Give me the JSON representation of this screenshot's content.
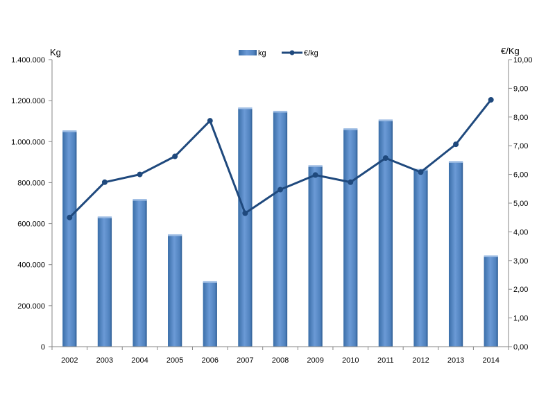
{
  "chart_data": {
    "type": "bar+line",
    "categories": [
      "2002",
      "2003",
      "2004",
      "2005",
      "2006",
      "2007",
      "2008",
      "2009",
      "2010",
      "2011",
      "2012",
      "2013",
      "2014"
    ],
    "series": [
      {
        "name": "kg",
        "type": "bar",
        "axis": "left",
        "color": "#4F81BD",
        "values": [
          1050000,
          630000,
          715000,
          543000,
          315000,
          1162000,
          1145000,
          880000,
          1060000,
          1103000,
          862000,
          900000,
          440000
        ]
      },
      {
        "name": "€/kg",
        "type": "line",
        "axis": "right",
        "color": "#1F497D",
        "values": [
          4.5,
          5.73,
          6.0,
          6.63,
          7.87,
          4.65,
          5.47,
          5.98,
          5.73,
          6.57,
          6.08,
          7.05,
          8.6
        ]
      }
    ],
    "left_axis": {
      "unit_label": "Kg",
      "range": [
        0,
        1400000
      ],
      "tick_labels": [
        "0",
        "200.000",
        "400.000",
        "600.000",
        "800.000",
        "1.000.000",
        "1.200.000",
        "1.400.000"
      ]
    },
    "right_axis": {
      "unit_label": "€/Kg",
      "range": [
        0,
        10
      ],
      "tick_labels": [
        "0,00",
        "1,00",
        "2,00",
        "3,00",
        "4,00",
        "5,00",
        "6,00",
        "7,00",
        "8,00",
        "9,00",
        "10,00"
      ]
    },
    "legend_position": "top-center",
    "grid": false
  }
}
